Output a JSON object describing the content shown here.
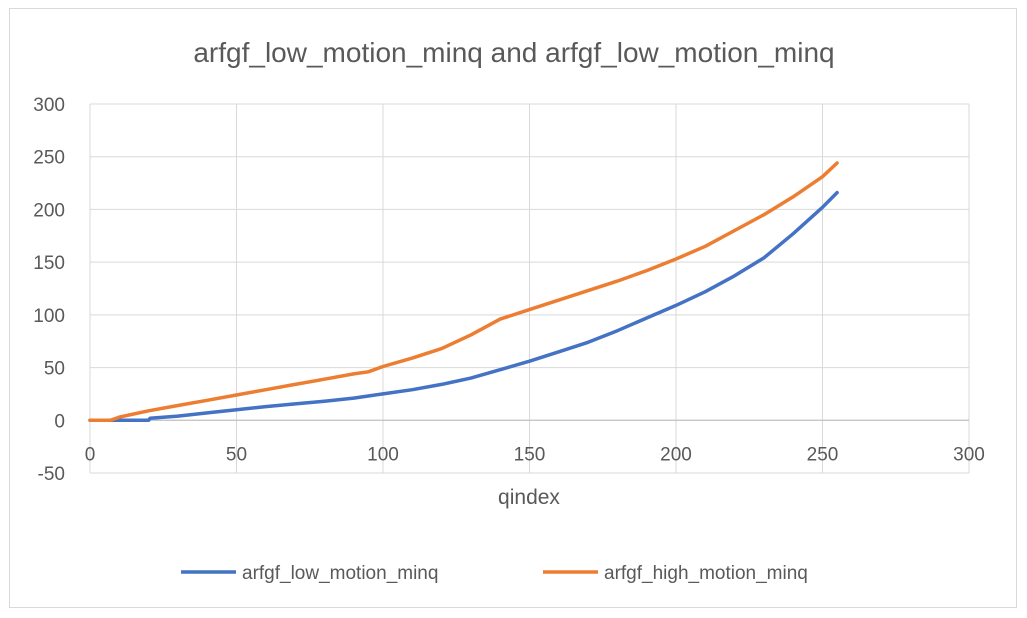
{
  "chart_data": {
    "type": "line",
    "title": "arfgf_low_motion_minq and arfgf_low_motion_minq",
    "xlabel": "qindex",
    "ylabel": "",
    "xlim": [
      0,
      300
    ],
    "ylim": [
      -50,
      300
    ],
    "x_ticks": [
      "0",
      "50",
      "100",
      "150",
      "200",
      "250",
      "300"
    ],
    "y_ticks": [
      "-50",
      "0",
      "50",
      "100",
      "150",
      "200",
      "250",
      "300"
    ],
    "grid": true,
    "legend_position": "bottom",
    "series": [
      {
        "name": "arfgf_low_motion_minq",
        "color": "#4472c4",
        "points": [
          [
            0,
            0
          ],
          [
            10,
            0
          ],
          [
            15,
            0
          ],
          [
            20,
            0
          ],
          [
            20.5,
            2
          ],
          [
            30,
            4
          ],
          [
            40,
            7
          ],
          [
            50,
            10
          ],
          [
            60,
            13
          ],
          [
            70,
            15.5
          ],
          [
            80,
            18
          ],
          [
            90,
            21
          ],
          [
            95,
            23
          ],
          [
            100,
            25
          ],
          [
            110,
            29
          ],
          [
            120,
            34
          ],
          [
            130,
            40
          ],
          [
            140,
            48
          ],
          [
            150,
            56
          ],
          [
            160,
            65
          ],
          [
            170,
            74
          ],
          [
            180,
            85
          ],
          [
            190,
            97
          ],
          [
            200,
            109
          ],
          [
            210,
            122
          ],
          [
            220,
            137
          ],
          [
            230,
            154
          ],
          [
            240,
            177
          ],
          [
            250,
            202
          ],
          [
            255,
            216
          ]
        ]
      },
      {
        "name": "arfgf_high_motion_minq",
        "color": "#ed7d31",
        "points": [
          [
            0,
            0
          ],
          [
            5,
            0
          ],
          [
            7,
            0
          ],
          [
            10,
            3
          ],
          [
            20,
            9
          ],
          [
            30,
            14
          ],
          [
            40,
            19
          ],
          [
            50,
            24
          ],
          [
            60,
            29
          ],
          [
            70,
            34
          ],
          [
            80,
            39
          ],
          [
            90,
            44
          ],
          [
            95,
            46
          ],
          [
            100,
            51
          ],
          [
            110,
            59
          ],
          [
            120,
            68
          ],
          [
            130,
            81
          ],
          [
            140,
            96
          ],
          [
            150,
            105
          ],
          [
            160,
            114
          ],
          [
            170,
            123
          ],
          [
            180,
            132
          ],
          [
            190,
            142
          ],
          [
            200,
            153
          ],
          [
            210,
            165
          ],
          [
            220,
            180
          ],
          [
            230,
            195
          ],
          [
            240,
            212
          ],
          [
            250,
            231
          ],
          [
            255,
            244
          ]
        ]
      }
    ]
  }
}
